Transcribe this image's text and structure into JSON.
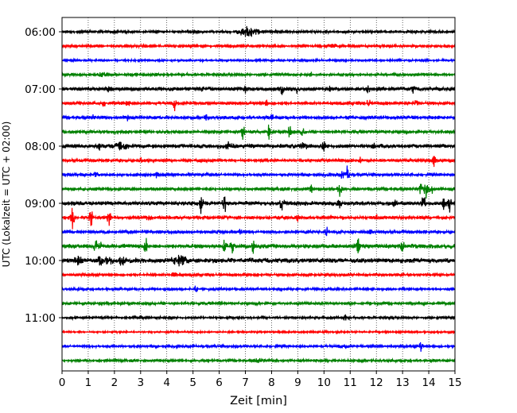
{
  "chart_data": {
    "type": "line",
    "title": "",
    "xlabel": "Zeit  [min]",
    "ylabel": "UTC (Lokalzeit = UTC + 02:00)",
    "xlim": [
      0,
      15
    ],
    "x_ticks": [
      "0",
      "1",
      "2",
      "3",
      "4",
      "5",
      "6",
      "7",
      "8",
      "9",
      "10",
      "11",
      "12",
      "13",
      "14",
      "15"
    ],
    "y_ticks": [
      "06:00",
      "07:00",
      "08:00",
      "09:00",
      "10:00",
      "11:00"
    ],
    "grid": "vertical dotted",
    "trace_interval_min": 15,
    "trace_colors": [
      "#000000",
      "#ff0000",
      "#0000ff",
      "#008000"
    ],
    "series": [
      {
        "start": "06:00",
        "noise": 1.5,
        "events": [
          {
            "x": 7.0,
            "a": 5,
            "w": 0.5
          },
          {
            "x": 7.3,
            "a": 3,
            "w": 0.4
          }
        ]
      },
      {
        "start": "06:15",
        "noise": 1.5,
        "events": [
          {
            "x": 10.4,
            "a": 2,
            "w": 0.4
          }
        ]
      },
      {
        "start": "06:30",
        "noise": 1.2,
        "events": []
      },
      {
        "start": "06:45",
        "noise": 1.6,
        "events": [
          {
            "x": 9.5,
            "a": 3,
            "w": 0.1
          },
          {
            "x": 1.5,
            "a": 2,
            "w": 0.3
          }
        ]
      },
      {
        "start": "07:00",
        "noise": 2.0,
        "events": [
          {
            "x": 1.8,
            "a": 5,
            "w": 0.1
          },
          {
            "x": 5.3,
            "a": 4,
            "w": 0.1
          },
          {
            "x": 7.0,
            "a": 4,
            "w": 0.1
          },
          {
            "x": 8.4,
            "a": 6,
            "w": 0.1
          },
          {
            "x": 9.0,
            "a": 7,
            "w": 0.1
          },
          {
            "x": 10.2,
            "a": 3,
            "w": 0.1
          },
          {
            "x": 11.7,
            "a": 5,
            "w": 0.1
          },
          {
            "x": 13.4,
            "a": 4,
            "w": 0.1
          }
        ]
      },
      {
        "start": "07:15",
        "noise": 1.8,
        "events": [
          {
            "x": 1.6,
            "a": 4,
            "w": 0.1
          },
          {
            "x": 2.5,
            "a": 4,
            "w": 0.1
          },
          {
            "x": 4.3,
            "a": 11,
            "w": 0.1
          },
          {
            "x": 7.8,
            "a": 4,
            "w": 0.1
          },
          {
            "x": 11.7,
            "a": 6,
            "w": 0.1
          },
          {
            "x": 13.5,
            "a": 5,
            "w": 0.1
          }
        ]
      },
      {
        "start": "07:30",
        "noise": 1.8,
        "events": [
          {
            "x": 1.2,
            "a": 3,
            "w": 0.1
          },
          {
            "x": 2.5,
            "a": 4,
            "w": 0.1
          },
          {
            "x": 5.5,
            "a": 3,
            "w": 0.1
          },
          {
            "x": 8.0,
            "a": 3,
            "w": 0.1
          },
          {
            "x": 11.0,
            "a": 3,
            "w": 0.1
          }
        ]
      },
      {
        "start": "07:45",
        "noise": 1.8,
        "events": [
          {
            "x": 2.5,
            "a": 4,
            "w": 0.1
          },
          {
            "x": 6.9,
            "a": 12,
            "w": 0.1
          },
          {
            "x": 7.9,
            "a": 11,
            "w": 0.1
          },
          {
            "x": 8.7,
            "a": 9,
            "w": 0.1
          },
          {
            "x": 9.2,
            "a": 4,
            "w": 0.1
          }
        ]
      },
      {
        "start": "08:00",
        "noise": 2.2,
        "events": [
          {
            "x": 1.4,
            "a": 6,
            "w": 0.1
          },
          {
            "x": 2.2,
            "a": 7,
            "w": 0.35
          },
          {
            "x": 6.4,
            "a": 4,
            "w": 0.2
          },
          {
            "x": 9.2,
            "a": 4,
            "w": 0.2
          },
          {
            "x": 10.0,
            "a": 6,
            "w": 0.1
          },
          {
            "x": 11.9,
            "a": 5,
            "w": 0.1
          }
        ]
      },
      {
        "start": "08:15",
        "noise": 1.8,
        "events": [
          {
            "x": 3.0,
            "a": 3,
            "w": 0.1
          },
          {
            "x": 7.6,
            "a": 3,
            "w": 0.1
          },
          {
            "x": 11.4,
            "a": 4,
            "w": 0.1
          },
          {
            "x": 14.2,
            "a": 7,
            "w": 0.1
          }
        ]
      },
      {
        "start": "08:30",
        "noise": 1.6,
        "events": [
          {
            "x": 1.3,
            "a": 3,
            "w": 0.1
          },
          {
            "x": 3.6,
            "a": 3,
            "w": 0.1
          },
          {
            "x": 10.9,
            "a": 12,
            "w": 0.1
          },
          {
            "x": 10.7,
            "a": 5,
            "w": 0.1
          }
        ]
      },
      {
        "start": "08:45",
        "noise": 1.8,
        "events": [
          {
            "x": 9.5,
            "a": 5,
            "w": 0.1
          },
          {
            "x": 10.6,
            "a": 13,
            "w": 0.1
          },
          {
            "x": 13.7,
            "a": 7,
            "w": 0.1
          },
          {
            "x": 13.9,
            "a": 12,
            "w": 0.1
          },
          {
            "x": 14.1,
            "a": 8,
            "w": 0.1
          }
        ]
      },
      {
        "start": "09:00",
        "noise": 2.2,
        "events": [
          {
            "x": 5.3,
            "a": 17,
            "w": 0.1
          },
          {
            "x": 6.2,
            "a": 14,
            "w": 0.1
          },
          {
            "x": 8.4,
            "a": 11,
            "w": 0.1
          },
          {
            "x": 10.6,
            "a": 5,
            "w": 0.1
          },
          {
            "x": 12.7,
            "a": 6,
            "w": 0.1
          },
          {
            "x": 13.8,
            "a": 11,
            "w": 0.1
          },
          {
            "x": 14.6,
            "a": 12,
            "w": 0.1
          },
          {
            "x": 14.8,
            "a": 10,
            "w": 0.1
          }
        ]
      },
      {
        "start": "09:15",
        "noise": 1.8,
        "events": [
          {
            "x": 0.4,
            "a": 14,
            "w": 0.1
          },
          {
            "x": 1.1,
            "a": 11,
            "w": 0.1
          },
          {
            "x": 1.8,
            "a": 16,
            "w": 0.1
          },
          {
            "x": 3.3,
            "a": 4,
            "w": 0.1
          },
          {
            "x": 9.0,
            "a": 4,
            "w": 0.1
          },
          {
            "x": 12.0,
            "a": 3,
            "w": 0.1
          }
        ]
      },
      {
        "start": "09:30",
        "noise": 1.8,
        "events": [
          {
            "x": 6.8,
            "a": 3,
            "w": 0.1
          },
          {
            "x": 10.1,
            "a": 6,
            "w": 0.1
          },
          {
            "x": 11.8,
            "a": 3,
            "w": 0.1
          }
        ]
      },
      {
        "start": "09:45",
        "noise": 2.4,
        "events": [
          {
            "x": 1.3,
            "a": 6,
            "w": 0.15
          },
          {
            "x": 1.5,
            "a": 7,
            "w": 0.1
          },
          {
            "x": 3.2,
            "a": 10,
            "w": 0.1
          },
          {
            "x": 6.2,
            "a": 9,
            "w": 0.1
          },
          {
            "x": 6.5,
            "a": 10,
            "w": 0.1
          },
          {
            "x": 7.3,
            "a": 8,
            "w": 0.1
          },
          {
            "x": 11.3,
            "a": 10,
            "w": 0.1
          },
          {
            "x": 13.0,
            "a": 5,
            "w": 0.1
          }
        ]
      },
      {
        "start": "10:00",
        "noise": 2.6,
        "events": [
          {
            "x": 0.6,
            "a": 5,
            "w": 0.2
          },
          {
            "x": 1.5,
            "a": 6,
            "w": 0.2
          },
          {
            "x": 2.3,
            "a": 5,
            "w": 0.2
          },
          {
            "x": 4.5,
            "a": 6,
            "w": 0.4
          },
          {
            "x": 1.8,
            "a": 4,
            "w": 0.2
          }
        ]
      },
      {
        "start": "10:15",
        "noise": 1.6,
        "events": [
          {
            "x": 4.3,
            "a": 2,
            "w": 0.2
          }
        ]
      },
      {
        "start": "10:30",
        "noise": 1.4,
        "events": [
          {
            "x": 5.1,
            "a": 4,
            "w": 0.1
          }
        ]
      },
      {
        "start": "10:45",
        "noise": 1.5,
        "events": []
      },
      {
        "start": "11:00",
        "noise": 1.4,
        "events": [
          {
            "x": 10.8,
            "a": 4,
            "w": 0.1
          }
        ]
      },
      {
        "start": "11:15",
        "noise": 1.1,
        "events": []
      },
      {
        "start": "11:30",
        "noise": 1.4,
        "events": [
          {
            "x": 10.8,
            "a": 2,
            "w": 0.3
          },
          {
            "x": 13.7,
            "a": 6,
            "w": 0.1
          }
        ]
      },
      {
        "start": "11:45",
        "noise": 1.5,
        "events": [
          {
            "x": 7.5,
            "a": 2,
            "w": 0.3
          }
        ]
      }
    ]
  }
}
